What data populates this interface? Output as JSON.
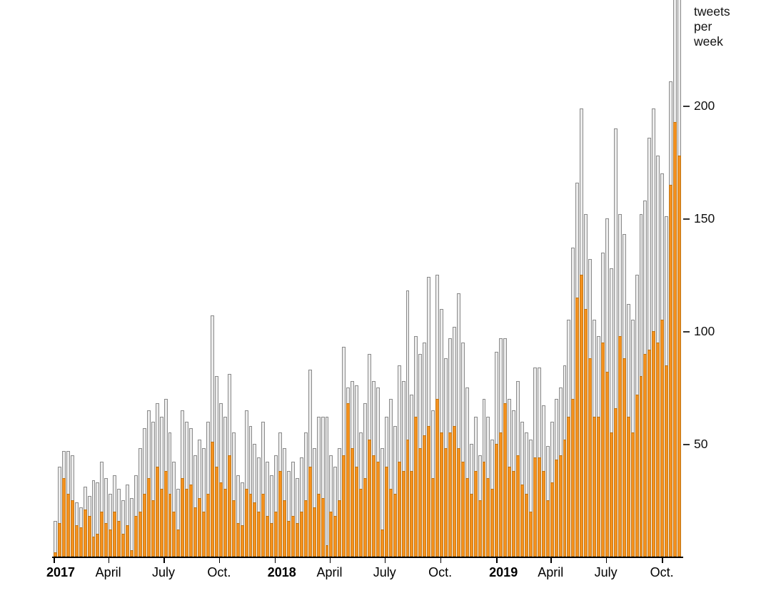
{
  "chart_data": {
    "type": "bar",
    "stacked": true,
    "title": "",
    "unit_label": "tweets\nper\nweek",
    "xlabel": "",
    "ylabel": "tweets per week",
    "ylim": [
      0,
      247
    ],
    "y_ticks": [
      50,
      100,
      150,
      200
    ],
    "x_ticks": [
      {
        "label": "2017",
        "week": 0,
        "bold": true
      },
      {
        "label": "April",
        "week": 12.9,
        "bold": false
      },
      {
        "label": "July",
        "week": 25.9,
        "bold": false
      },
      {
        "label": "Oct.",
        "week": 39.0,
        "bold": false
      },
      {
        "label": "2018",
        "week": 52.1,
        "bold": true
      },
      {
        "label": "April",
        "week": 65.0,
        "bold": false
      },
      {
        "label": "July",
        "week": 78.0,
        "bold": false
      },
      {
        "label": "Oct.",
        "week": 91.1,
        "bold": false
      },
      {
        "label": "2019",
        "week": 104.3,
        "bold": true
      },
      {
        "label": "April",
        "week": 117.1,
        "bold": false
      },
      {
        "label": "July",
        "week": 130.1,
        "bold": false
      },
      {
        "label": "Oct.",
        "week": 143.3,
        "bold": false
      }
    ],
    "series_note": "totals = full bar height (gray+orange); orange = highlighted bottom segment",
    "totals": [
      16,
      40,
      47,
      47,
      45,
      24,
      22,
      31,
      27,
      34,
      33,
      42,
      35,
      28,
      36,
      30,
      25,
      32,
      26,
      36,
      48,
      57,
      65,
      60,
      68,
      62,
      70,
      55,
      42,
      30,
      65,
      60,
      57,
      45,
      52,
      48,
      60,
      107,
      80,
      68,
      62,
      81,
      55,
      36,
      33,
      65,
      58,
      50,
      44,
      60,
      42,
      36,
      45,
      55,
      48,
      38,
      42,
      35,
      44,
      55,
      83,
      48,
      62,
      62,
      62,
      45,
      40,
      48,
      93,
      75,
      78,
      76,
      55,
      68,
      90,
      78,
      75,
      48,
      62,
      70,
      58,
      85,
      78,
      118,
      72,
      98,
      90,
      95,
      124,
      65,
      125,
      110,
      88,
      97,
      102,
      117,
      95,
      75,
      50,
      62,
      45,
      70,
      62,
      52,
      91,
      97,
      97,
      70,
      65,
      78,
      60,
      55,
      52,
      84,
      84,
      67,
      49,
      60,
      70,
      75,
      85,
      105,
      137,
      166,
      199,
      152,
      132,
      105,
      98,
      135,
      150,
      128,
      190,
      152,
      143,
      112,
      105,
      125,
      152,
      158,
      186,
      199,
      178,
      170,
      151,
      211,
      258,
      252
    ],
    "orange": [
      2,
      15,
      35,
      28,
      25,
      14,
      13,
      21,
      18,
      9,
      10,
      20,
      15,
      12,
      20,
      16,
      10,
      14,
      3,
      18,
      20,
      28,
      35,
      25,
      40,
      30,
      38,
      28,
      20,
      12,
      35,
      30,
      32,
      22,
      26,
      20,
      28,
      51,
      40,
      33,
      30,
      45,
      25,
      15,
      14,
      30,
      28,
      24,
      20,
      28,
      18,
      15,
      20,
      38,
      25,
      16,
      18,
      15,
      20,
      25,
      40,
      22,
      28,
      26,
      5,
      20,
      18,
      25,
      45,
      68,
      48,
      40,
      30,
      35,
      52,
      45,
      42,
      12,
      40,
      30,
      28,
      42,
      38,
      52,
      38,
      62,
      48,
      54,
      58,
      35,
      70,
      55,
      48,
      55,
      58,
      48,
      42,
      35,
      28,
      38,
      25,
      42,
      35,
      30,
      50,
      55,
      68,
      40,
      38,
      45,
      32,
      28,
      20,
      44,
      44,
      38,
      25,
      33,
      43,
      45,
      52,
      62,
      70,
      115,
      125,
      110,
      88,
      62,
      62,
      95,
      82,
      55,
      66,
      98,
      88,
      62,
      55,
      72,
      80,
      90,
      92,
      100,
      95,
      105,
      85,
      165,
      193,
      178
    ],
    "colors": {
      "bar_highlight": "#F6921E",
      "bar_highlight_border": "#C07617",
      "bar_other": "#ECECEC",
      "bar_other_border": "#8A8A8A",
      "axis": "#000000",
      "text": "#111111"
    },
    "legend_position": "none",
    "grid": false,
    "y_axis_side": "right"
  }
}
